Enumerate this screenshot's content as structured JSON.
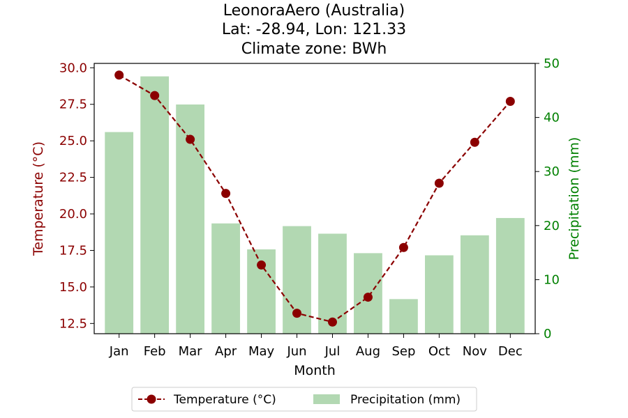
{
  "chart_data": {
    "type": "bar+line",
    "title_lines": [
      "LeonoraAero (Australia)",
      "Lat: -28.94, Lon: 121.33",
      "Climate zone: BWh"
    ],
    "xlabel": "Month",
    "ylabel_left": "Temperature (°C)",
    "ylabel_right": "Precipitation (mm)",
    "categories": [
      "Jan",
      "Feb",
      "Mar",
      "Apr",
      "May",
      "Jun",
      "Jul",
      "Aug",
      "Sep",
      "Oct",
      "Nov",
      "Dec"
    ],
    "series": [
      {
        "name": "Temperature (°C)",
        "type": "line",
        "axis": "left",
        "color": "#8b0000",
        "values": [
          29.5,
          28.1,
          25.1,
          21.4,
          16.5,
          13.2,
          12.6,
          14.3,
          17.7,
          22.1,
          24.9,
          27.7
        ]
      },
      {
        "name": "Precipitation (mm)",
        "type": "bar",
        "axis": "right",
        "color": "#b2d8b2",
        "values": [
          37.3,
          47.6,
          42.4,
          20.4,
          15.6,
          19.9,
          18.5,
          14.9,
          6.4,
          14.5,
          18.2,
          21.4
        ]
      }
    ],
    "ylim_left": [
      11.8,
      30.3
    ],
    "yticks_left": [
      "12.5",
      "15.0",
      "17.5",
      "20.0",
      "22.5",
      "25.0",
      "27.5",
      "30.0"
    ],
    "ylim_right": [
      0,
      50
    ],
    "yticks_right": [
      "0",
      "10",
      "20",
      "30",
      "40",
      "50"
    ],
    "left_axis_color": "#8b0000",
    "right_axis_color": "#008000",
    "grid": false,
    "legend_position": "bottom-center"
  }
}
